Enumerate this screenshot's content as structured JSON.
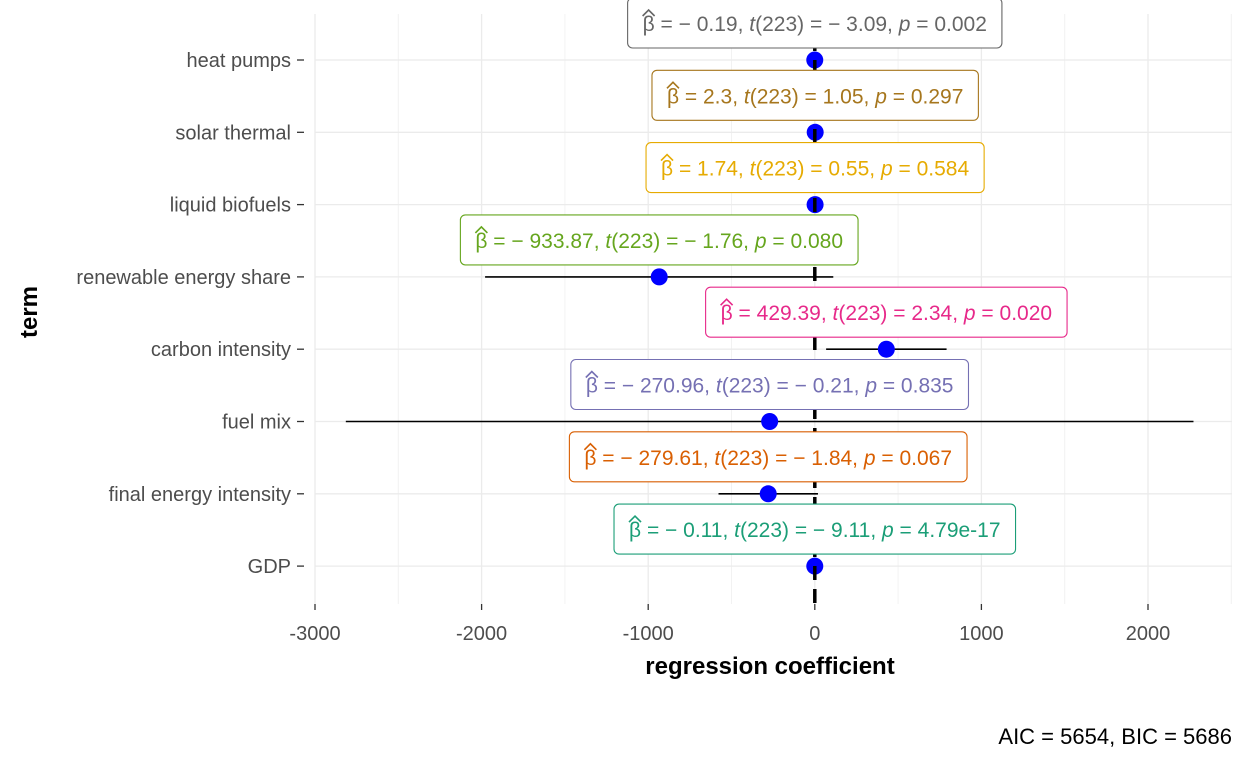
{
  "chart_data": {
    "type": "coefficient-plot",
    "xlabel": "regression coefficient",
    "ylabel": "term",
    "caption": "AIC = 5654, BIC = 5686",
    "xlim": [
      -3000,
      2500
    ],
    "x_ticks": [
      -3000,
      -2000,
      -1000,
      0,
      1000,
      2000
    ],
    "x_tick_labels": [
      "-3000",
      "-2000",
      "-1000",
      "0",
      "1000",
      "2000"
    ],
    "reference_line": 0,
    "grid": true,
    "terms": [
      {
        "term": "heat pumps",
        "estimate": -0.19,
        "ci_low": -0.31,
        "ci_high": -0.07,
        "color": "#666666",
        "label": {
          "beta": "− 0.19",
          "df": "223",
          "t": "− 3.09",
          "p": "0.002",
          "p_sym": "="
        }
      },
      {
        "term": "solar thermal",
        "estimate": 2.3,
        "ci_low": -2.0,
        "ci_high": 6.6,
        "color": "#A6761D",
        "label": {
          "beta": "2.3",
          "df": "223",
          "t": "1.05",
          "p": "0.297",
          "p_sym": "="
        }
      },
      {
        "term": "liquid biofuels",
        "estimate": 1.74,
        "ci_low": -4.5,
        "ci_high": 8.0,
        "color": "#E6AB02",
        "label": {
          "beta": "1.74",
          "df": "223",
          "t": "0.55",
          "p": "0.584",
          "p_sym": "="
        }
      },
      {
        "term": "renewable energy share",
        "estimate": -933.87,
        "ci_low": -1979,
        "ci_high": 111,
        "color": "#66A61E",
        "label": {
          "beta": "− 933.87",
          "df": "223",
          "t": "− 1.76",
          "p": "0.080",
          "p_sym": "="
        }
      },
      {
        "term": "carbon intensity",
        "estimate": 429.39,
        "ci_low": 68,
        "ci_high": 791,
        "color": "#E7298A",
        "label": {
          "beta": "429.39",
          "df": "223",
          "t": "2.34",
          "p": "0.020",
          "p_sym": "="
        }
      },
      {
        "term": "fuel mix",
        "estimate": -270.96,
        "ci_low": -2815,
        "ci_high": 2273,
        "color": "#7570B3",
        "label": {
          "beta": "− 270.96",
          "df": "223",
          "t": "− 0.21",
          "p": "0.835",
          "p_sym": "="
        }
      },
      {
        "term": "final energy intensity",
        "estimate": -279.61,
        "ci_low": -578,
        "ci_high": 19,
        "color": "#D95F02",
        "label": {
          "beta": "− 279.61",
          "df": "223",
          "t": "− 1.84",
          "p": "0.067",
          "p_sym": "="
        }
      },
      {
        "term": "GDP",
        "estimate": -0.11,
        "ci_low": -0.13,
        "ci_high": -0.09,
        "color": "#1B9E77",
        "label": {
          "beta": "− 0.11",
          "df": "223",
          "t": "− 9.11",
          "p": "4.79e-17",
          "p_sym": "="
        }
      }
    ],
    "point_color": "#0000FF"
  }
}
